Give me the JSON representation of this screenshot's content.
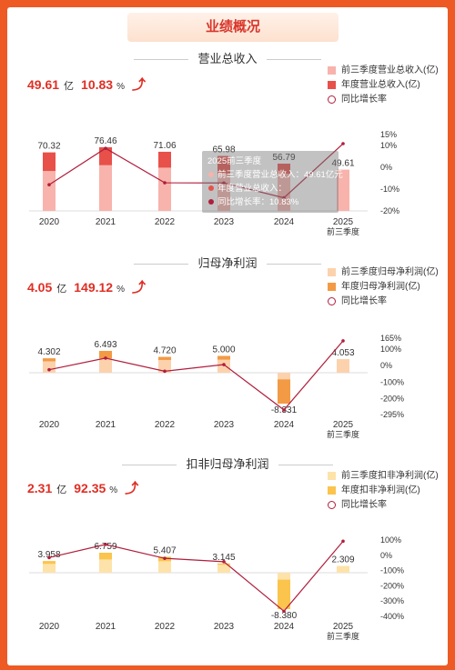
{
  "header": {
    "title": "业绩概况"
  },
  "sections": [
    {
      "title": "营业总收入",
      "kpi": {
        "value": "49.61",
        "unit": "亿",
        "growth": "10.83",
        "pct": "%"
      },
      "legend": [
        "前三季度营业总收入(亿)",
        "年度营业总收入(亿)",
        "同比增长率"
      ]
    },
    {
      "title": "归母净利润",
      "kpi": {
        "value": "4.05",
        "unit": "亿",
        "growth": "149.12",
        "pct": "%"
      },
      "legend": [
        "前三季度归母净利润(亿)",
        "年度归母净利润(亿)",
        "同比增长率"
      ]
    },
    {
      "title": "扣非归母净利润",
      "kpi": {
        "value": "2.31",
        "unit": "亿",
        "growth": "92.35",
        "pct": "%"
      },
      "legend": [
        "前三季度扣非净利润(亿)",
        "年度扣非净利润(亿)",
        "同比增长率"
      ]
    }
  ],
  "tooltip": {
    "title": "2025前三季度",
    "rows": [
      "前三季度营业总收入：49.61亿元",
      "年度营业总收入：",
      "同比增长率：10.83%"
    ]
  },
  "chart_data": [
    {
      "type": "bar",
      "categories": [
        "2020",
        "2021",
        "2022",
        "2023",
        "2024",
        "2025\n前三季度"
      ],
      "series": [
        {
          "name": "年度营业总收入(亿)",
          "values": [
            70.32,
            76.46,
            71.06,
            65.98,
            56.79,
            null
          ],
          "color": "#e8504a"
        },
        {
          "name": "前三季度营业总收入(亿)",
          "values": [
            48,
            55,
            52,
            45,
            44.8,
            49.61
          ],
          "color": "#f7b3ac"
        },
        {
          "name": "同比增长率",
          "type": "line",
          "values": [
            -8,
            8.7,
            -7.1,
            -7.2,
            -14,
            10.83
          ],
          "color": "#b01e3c"
        }
      ],
      "data_labels": [
        "70.32",
        "76.46",
        "71.06",
        "65.98",
        "56.79",
        "49.61"
      ],
      "y2_ticks": [
        "15%",
        "10%",
        "0%",
        "-10%",
        "-20%"
      ],
      "y2_values": [
        15,
        10,
        0,
        -10,
        -20
      ]
    },
    {
      "type": "bar",
      "categories": [
        "2020",
        "2021",
        "2022",
        "2023",
        "2024",
        "2025\n前三季度"
      ],
      "series": [
        {
          "name": "年度归母净利润(亿)",
          "values": [
            4.302,
            6.493,
            4.72,
            5.0,
            -8.331,
            null
          ],
          "color": "#f39a45"
        },
        {
          "name": "前三季度归母净利润(亿)",
          "values": [
            3.4,
            4.3,
            3.8,
            3.9,
            -1.8,
            4.053
          ],
          "color": "#fcd2ad"
        },
        {
          "name": "同比增长率",
          "type": "line",
          "values": [
            -25,
            45,
            -34,
            6,
            -267,
            149
          ],
          "color": "#b01e3c"
        }
      ],
      "data_labels": [
        "4.302",
        "6.493",
        "4.720",
        "5.000",
        "-8.331",
        "4.053"
      ],
      "y2_ticks": [
        "165%",
        "100%",
        "0%",
        "-100%",
        "-200%",
        "-295%"
      ],
      "y2_values": [
        165,
        100,
        0,
        -100,
        -200,
        -295
      ]
    },
    {
      "type": "bar",
      "categories": [
        "2020",
        "2021",
        "2022",
        "2023",
        "2024",
        "2025\n前三季度"
      ],
      "series": [
        {
          "name": "年度扣非归母净利润(亿)",
          "values": [
            3.958,
            6.759,
            5.407,
            3.145,
            -8.38,
            null
          ],
          "color": "#fbc44d"
        },
        {
          "name": "前三季度扣非净利润(亿)",
          "values": [
            3.0,
            4.5,
            3.9,
            2.7,
            -1.6,
            2.309
          ],
          "color": "#fde3a9"
        },
        {
          "name": "同比增长率",
          "type": "line",
          "values": [
            -15,
            71,
            -20,
            -42,
            -366,
            92
          ],
          "color": "#b01e3c"
        }
      ],
      "data_labels": [
        "3.958",
        "6.759",
        "5.407",
        "3.145",
        "-8.380",
        "2.309"
      ],
      "y2_ticks": [
        "100%",
        "0%",
        "-100%",
        "-200%",
        "-300%",
        "-400%"
      ],
      "y2_values": [
        100,
        0,
        -100,
        -200,
        -300,
        -400
      ]
    }
  ]
}
